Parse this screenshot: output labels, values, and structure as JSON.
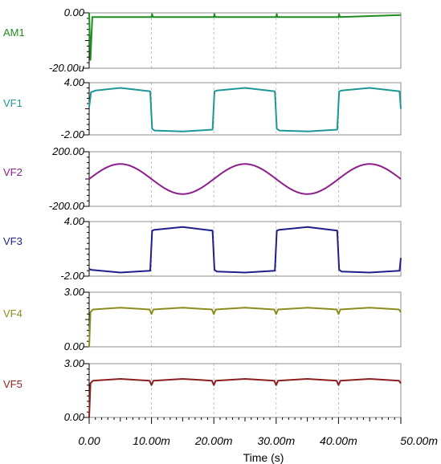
{
  "chart_data": {
    "type": "line",
    "xlabel": "Time (s)",
    "x_ticks": [
      "0.00",
      "10.00m",
      "20.00m",
      "30.00m",
      "40.00m",
      "50.00m"
    ],
    "xlim": [
      0,
      0.05
    ],
    "channels": [
      {
        "name": "AM1",
        "color": "#1e8c1e",
        "ytop_label": "0.00",
        "ybot_label": "-20.00u",
        "ylim": [
          -2e-05,
          0
        ],
        "x": [
          0,
          0.0002,
          0.0005,
          0.01,
          0.0101,
          0.0102,
          0.02,
          0.0201,
          0.0202,
          0.03,
          0.0301,
          0.0302,
          0.04,
          0.0401,
          0.0402,
          0.05
        ],
        "values": [
          0,
          -1.7e-05,
          -1.5e-06,
          -1.5e-06,
          -5e-07,
          -1.5e-06,
          -1.5e-06,
          -5e-07,
          -1.5e-06,
          -1.5e-06,
          -5e-07,
          -1.5e-06,
          -1.5e-06,
          -5e-07,
          -1.5e-06,
          -8e-07
        ]
      },
      {
        "name": "VF1",
        "color": "#1e9696",
        "ytop_label": "4.00",
        "ybot_label": "-2.00",
        "ylim": [
          -2,
          4
        ],
        "x": [
          0,
          0.0003,
          0.001,
          0.005,
          0.0098,
          0.0101,
          0.0105,
          0.015,
          0.0198,
          0.0201,
          0.0205,
          0.025,
          0.0298,
          0.0301,
          0.0305,
          0.035,
          0.0398,
          0.0401,
          0.0405,
          0.045,
          0.0498,
          0.05
        ],
        "values": [
          1.2,
          2.9,
          3.1,
          3.4,
          3.0,
          -1.3,
          -1.5,
          -1.6,
          -1.4,
          3.0,
          3.1,
          3.4,
          3.0,
          -1.3,
          -1.5,
          -1.6,
          -1.4,
          3.0,
          3.1,
          3.4,
          3.0,
          1.0
        ]
      },
      {
        "name": "VF2",
        "color": "#8c1e8c",
        "ytop_label": "200.00",
        "ybot_label": "-200.00",
        "ylim": [
          -200,
          200
        ],
        "function": "sine",
        "amplitude": 110,
        "period": 0.02
      },
      {
        "name": "VF3",
        "color": "#1e1e8c",
        "ytop_label": "4.00",
        "ybot_label": "-2.00",
        "ylim": [
          -2,
          4
        ],
        "x": [
          0,
          0.0003,
          0.005,
          0.0098,
          0.0101,
          0.0105,
          0.015,
          0.0198,
          0.0201,
          0.0205,
          0.025,
          0.0298,
          0.0301,
          0.0305,
          0.035,
          0.0398,
          0.0401,
          0.0405,
          0.045,
          0.0498,
          0.05
        ],
        "values": [
          -1.2,
          -1.3,
          -1.6,
          -1.4,
          3.0,
          3.1,
          3.4,
          3.0,
          -1.3,
          -1.5,
          -1.6,
          -1.4,
          3.0,
          3.1,
          3.4,
          3.0,
          -1.3,
          -1.5,
          -1.6,
          -1.4,
          0.0
        ]
      },
      {
        "name": "VF4",
        "color": "#8c8c1e",
        "ytop_label": "3.00",
        "ybot_label": "0.00",
        "ylim": [
          0,
          3
        ],
        "x": [
          0,
          0.0002,
          0.0006,
          0.005,
          0.0097,
          0.01,
          0.0103,
          0.015,
          0.0197,
          0.02,
          0.0203,
          0.025,
          0.0297,
          0.03,
          0.0303,
          0.035,
          0.0397,
          0.04,
          0.0403,
          0.045,
          0.0497,
          0.05
        ],
        "values": [
          0,
          1.9,
          2.05,
          2.15,
          2.05,
          1.8,
          2.05,
          2.15,
          2.05,
          1.8,
          2.05,
          2.15,
          2.05,
          1.8,
          2.05,
          2.15,
          2.05,
          1.8,
          2.05,
          2.15,
          2.05,
          1.9
        ]
      },
      {
        "name": "VF5",
        "color": "#8c1e1e",
        "ytop_label": "3.00",
        "ybot_label": "0.00",
        "ylim": [
          0,
          3
        ],
        "x": [
          0,
          0.0002,
          0.0006,
          0.005,
          0.0097,
          0.01,
          0.0103,
          0.015,
          0.0197,
          0.02,
          0.0203,
          0.025,
          0.0297,
          0.03,
          0.0303,
          0.035,
          0.0397,
          0.04,
          0.0403,
          0.045,
          0.0497,
          0.05
        ],
        "values": [
          0,
          1.9,
          2.05,
          2.15,
          2.05,
          1.8,
          2.05,
          2.15,
          2.05,
          1.8,
          2.05,
          2.15,
          2.05,
          1.8,
          2.05,
          2.15,
          2.05,
          1.8,
          2.05,
          2.15,
          2.05,
          1.9
        ]
      }
    ]
  }
}
